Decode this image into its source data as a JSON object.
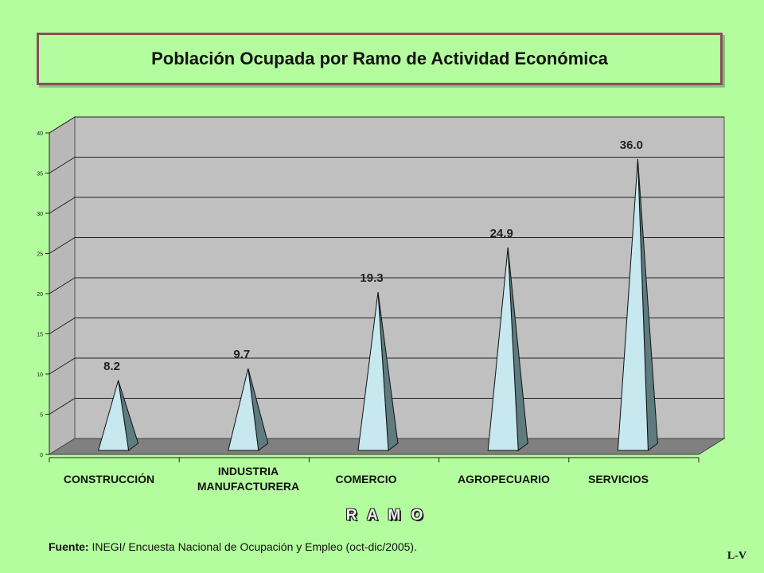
{
  "title": "Población Ocupada por Ramo de Actividad Económica",
  "chart_data": {
    "type": "bar",
    "bar_shape": "3d-pyramid",
    "title": "Población Ocupada por Ramo de Actividad Económica",
    "categories": [
      "CONSTRUCCIÓN",
      "INDUSTRIA\nMANUFACTURERA",
      "COMERCIO",
      "AGROPECUARIO",
      "SERVICIOS"
    ],
    "values": [
      8.2,
      9.7,
      19.3,
      24.9,
      36.0
    ],
    "data_labels": [
      "8.2",
      "9.7",
      "19.3",
      "24.9",
      "36.0"
    ],
    "xlabel": "R A M O",
    "ylabel": "",
    "ylim": [
      0,
      40
    ],
    "yticks": [
      0,
      5,
      10,
      15,
      20,
      25,
      30,
      35,
      40
    ],
    "grid": true,
    "legend": "none",
    "colors": {
      "background": "#b4fd9e",
      "plot_wall": "#c0c0c0",
      "floor": "#808080",
      "bar_light": "#c6e8ee",
      "bar_dark": "#5e7c80"
    }
  },
  "source": {
    "label": "Fuente:",
    "text": " INEGI/ Encuesta Nacional de Ocupación y Empleo (oct-dic/2005)."
  },
  "slide_id": "L-V"
}
